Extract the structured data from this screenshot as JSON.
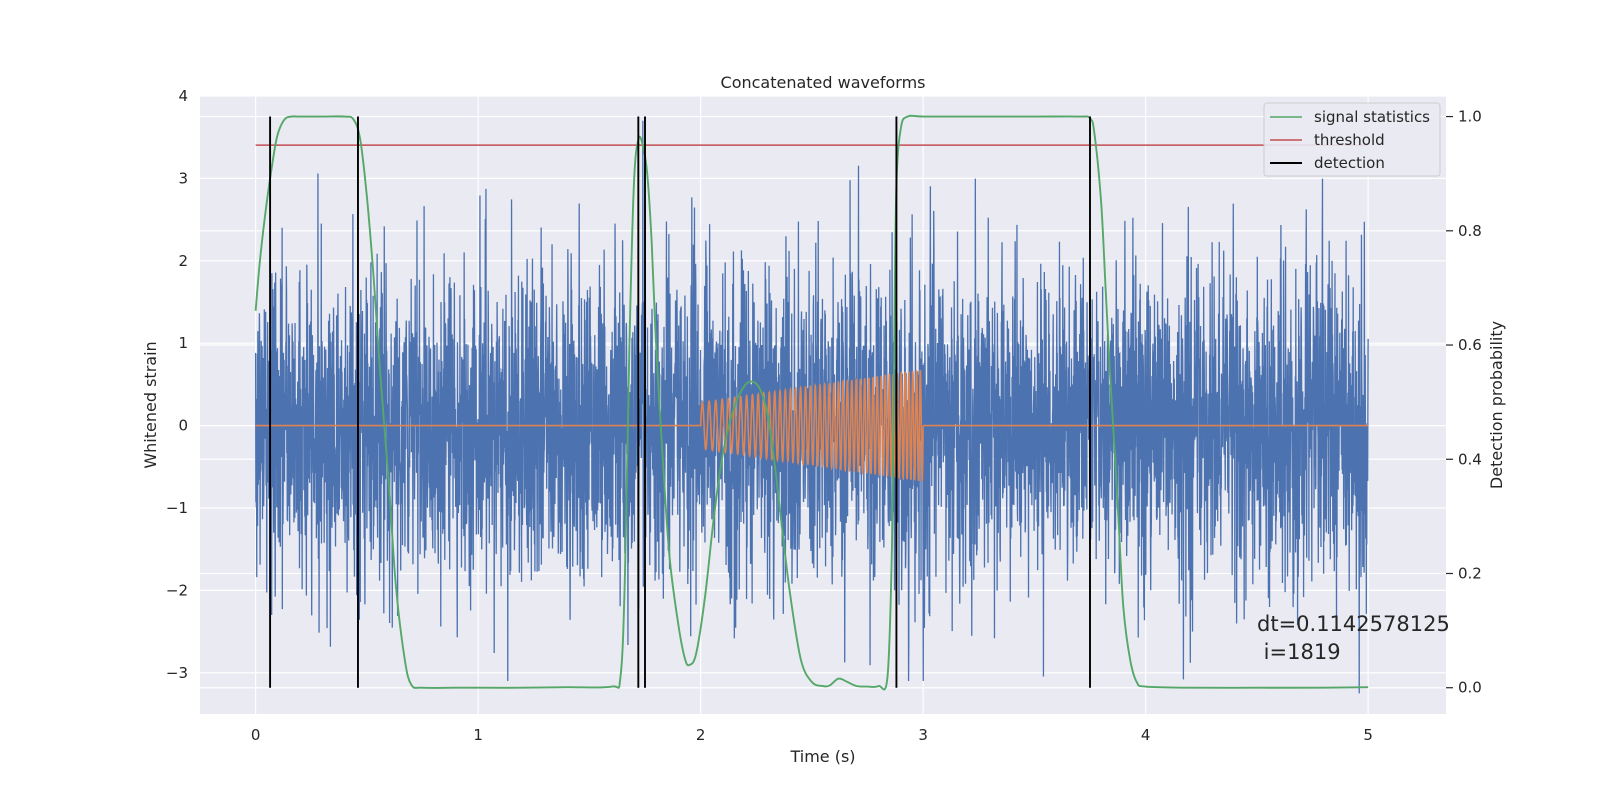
{
  "chart_data": {
    "type": "line",
    "title": "Concatenated waveforms",
    "xlabel": "Time (s)",
    "ylabel": "Whitened strain",
    "y2label": "Detection probability",
    "xlim": [
      -0.25,
      5.35
    ],
    "ylim": [
      -3.5,
      4.0
    ],
    "y2lim": [
      -0.046,
      1.036
    ],
    "x_ticks": [
      0,
      1,
      2,
      3,
      4,
      5
    ],
    "y_ticks": [
      -3,
      -2,
      -1,
      0,
      1,
      2,
      3,
      4
    ],
    "y2_ticks": [
      0.0,
      0.2,
      0.4,
      0.6,
      0.8,
      1.0
    ],
    "x_tick_labels": [
      "0",
      "1",
      "2",
      "3",
      "4",
      "5"
    ],
    "y_tick_labels": [
      "−3",
      "−2",
      "−1",
      "0",
      "1",
      "2",
      "3",
      "4"
    ],
    "y2_tick_labels": [
      "0.0",
      "0.2",
      "0.4",
      "0.6",
      "0.8",
      "1.0"
    ],
    "grid": true,
    "legend_position": "top-right",
    "colors": {
      "background": "#eaeaf2",
      "grid": "#ffffff",
      "noise": "#4c72b0",
      "injected": "#dd8452",
      "statistic": "#55a868",
      "threshold": "#c44e52",
      "detection": "#000000"
    },
    "series": [
      {
        "name": "",
        "axis": "left",
        "kind": "noise",
        "x_range": [
          0,
          5
        ],
        "y_envelope": [
          -3.1,
          3.4
        ],
        "peak_x": 1.74,
        "peak_y": 3.7,
        "trough_x": 4.96,
        "trough_y": -3.25
      },
      {
        "name": "",
        "axis": "left",
        "kind": "chirp",
        "x_range": [
          2.0,
          3.0
        ],
        "amplitude_start": 0.28,
        "amplitude_end": 0.68,
        "cycles": 46
      },
      {
        "name": "signal statistics",
        "axis": "right",
        "x": [
          0,
          0.02,
          0.05,
          0.08,
          0.1,
          0.13,
          0.16,
          0.2,
          0.3,
          0.4,
          0.44,
          0.47,
          0.5,
          0.53,
          0.56,
          0.6,
          0.63,
          0.67,
          0.7,
          0.75,
          0.9,
          1.0,
          1.2,
          1.4,
          1.6,
          1.64,
          1.66,
          1.68,
          1.7,
          1.72,
          1.74,
          1.76,
          1.78,
          1.8,
          1.83,
          1.86,
          1.9,
          1.93,
          1.95,
          1.98,
          2.02,
          2.06,
          2.1,
          2.15,
          2.2,
          2.24,
          2.27,
          2.3,
          2.33,
          2.36,
          2.4,
          2.45,
          2.5,
          2.55,
          2.58,
          2.62,
          2.66,
          2.7,
          2.75,
          2.8,
          2.84,
          2.86,
          2.87,
          2.88,
          2.9,
          2.93,
          3.0,
          3.2,
          3.5,
          3.7,
          3.75,
          3.77,
          3.8,
          3.82,
          3.84,
          3.86,
          3.88,
          3.9,
          3.93,
          3.96,
          4.0,
          4.2,
          4.5,
          4.8,
          5.0
        ],
        "y": [
          0.66,
          0.75,
          0.85,
          0.93,
          0.97,
          0.995,
          1.0,
          1.0,
          1.0,
          1.0,
          0.995,
          0.96,
          0.86,
          0.72,
          0.55,
          0.35,
          0.18,
          0.05,
          0.005,
          0.0,
          0.0,
          0.0,
          0.0,
          0.001,
          0.002,
          0.02,
          0.2,
          0.6,
          0.88,
          0.96,
          0.95,
          0.9,
          0.78,
          0.6,
          0.4,
          0.23,
          0.11,
          0.05,
          0.04,
          0.06,
          0.16,
          0.3,
          0.41,
          0.49,
          0.53,
          0.535,
          0.52,
          0.48,
          0.4,
          0.3,
          0.17,
          0.05,
          0.01,
          0.003,
          0.004,
          0.016,
          0.01,
          0.003,
          0.002,
          0.003,
          0.02,
          0.25,
          0.6,
          0.88,
          0.98,
          1.0,
          1.0,
          1.0,
          1.0,
          1.0,
          0.997,
          0.97,
          0.85,
          0.7,
          0.55,
          0.42,
          0.28,
          0.14,
          0.05,
          0.01,
          0.002,
          0.0,
          0.0,
          0.0,
          0.001
        ]
      },
      {
        "name": "threshold",
        "axis": "right",
        "x": [
          0,
          5
        ],
        "y": [
          0.95,
          0.95
        ]
      },
      {
        "name": "detection",
        "axis": "right",
        "kind": "vertical_lines",
        "x": [
          0.065,
          0.46,
          1.72,
          1.75,
          2.88,
          3.75
        ],
        "ymin": 0.0,
        "ymax": 1.0
      }
    ],
    "annotations": [
      "dt=0.1142578125",
      " i=1819"
    ]
  }
}
